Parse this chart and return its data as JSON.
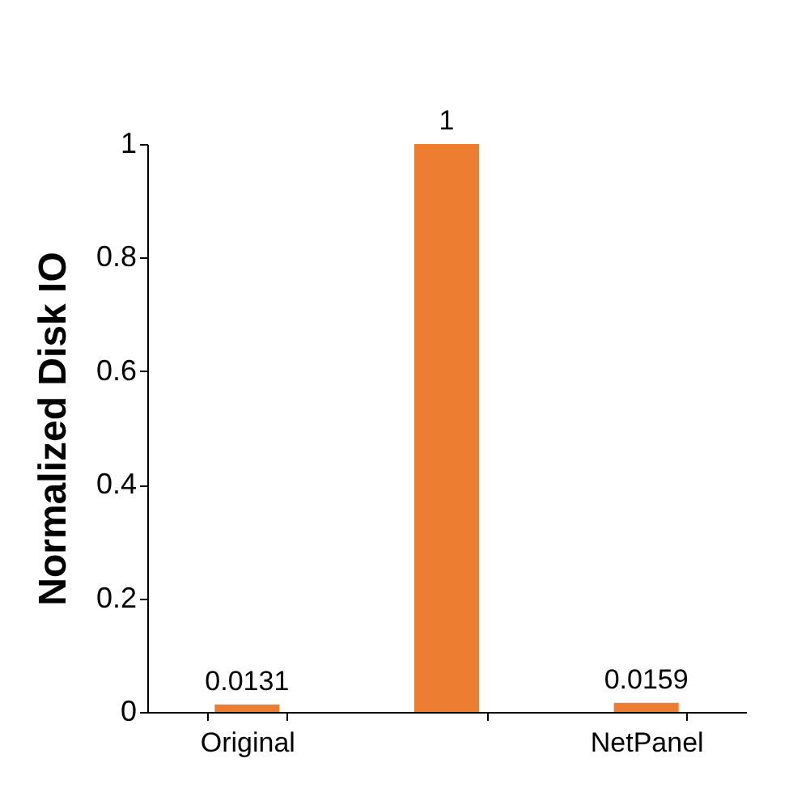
{
  "chart_data": {
    "type": "bar",
    "ylabel": "Normalized Disk IO",
    "categories": [
      "Original",
      null,
      "NetPanel"
    ],
    "values": [
      0.0131,
      1,
      0.0159
    ],
    "color": "#ed7d31",
    "ylim": [
      0,
      1
    ],
    "yticks": [
      0,
      0.2,
      0.4,
      0.6,
      0.8,
      1
    ],
    "grid": false,
    "data_labels": true
  }
}
